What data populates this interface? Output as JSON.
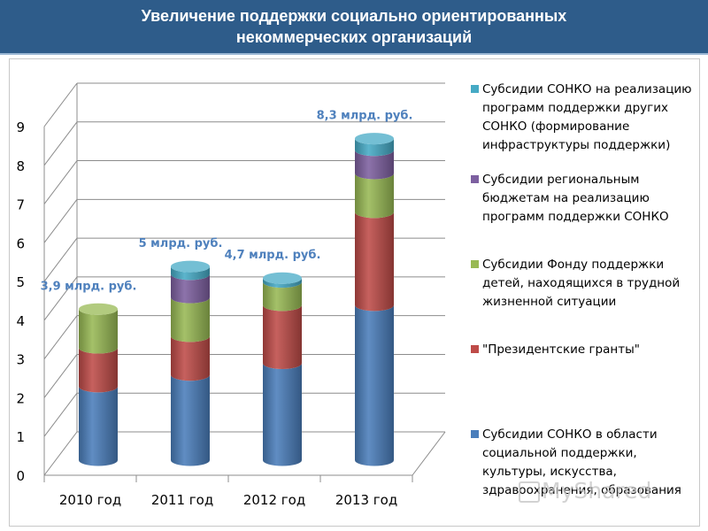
{
  "header": {
    "title_line1": "Увеличение поддержки социально ориентированных",
    "title_line2": "некоммерческих организаций"
  },
  "chart_data": {
    "type": "bar",
    "stacked": true,
    "style": "3d-cylinder",
    "categories": [
      "2010 год",
      "2011 год",
      "2012 год",
      "2013 год"
    ],
    "series": [
      {
        "name": "Субсидии СОНКО в области социальной поддержки, культуры, искусства, здравоохранения, образования",
        "color": "#4a7ebb",
        "values": [
          1.9,
          2.2,
          2.5,
          4.0
        ]
      },
      {
        "name": "\"Президентские гранты\"",
        "color": "#be4b48",
        "values": [
          1.0,
          1.0,
          1.5,
          2.4
        ]
      },
      {
        "name": "Субсидии Фонду поддержки детей, находящихся в трудной жизненной ситуации",
        "color": "#98b954",
        "values": [
          1.0,
          1.0,
          0.6,
          1.0
        ]
      },
      {
        "name": "Субсидии региональным бюджетам на реализацию программ поддержки СОНКО",
        "color": "#7d60a0",
        "values": [
          0,
          0.6,
          0,
          0.6
        ]
      },
      {
        "name": "Субсидии СОНКО на реализацию программ поддержки других СОНКО (формирование инфраструктуры поддержки)",
        "color": "#46aac5",
        "values": [
          0,
          0.2,
          0.1,
          0.3
        ]
      }
    ],
    "data_labels": [
      "3,9 млрд. руб.",
      "5 млрд. руб.",
      "4,7 млрд. руб.",
      "8,3 млрд. руб."
    ],
    "label_color": "#4f81bd",
    "ylim": [
      0,
      9
    ],
    "yticks": [
      "0",
      "1",
      "2",
      "3",
      "4",
      "5",
      "6",
      "7",
      "8",
      "9"
    ],
    "grid": true,
    "legend_position": "right"
  },
  "legend": {
    "items": [
      {
        "color": "#46aac5",
        "label": "Субсидии СОНКО на реализацию программ поддержки других СОНКО (формирование инфраструктуры поддержки)"
      },
      {
        "color": "#7d60a0",
        "label": "Субсидии региональным бюджетам на реализацию программ поддержки СОНКО"
      },
      {
        "color": "#98b954",
        "label": "Субсидии Фонду поддержки детей, находящихся в трудной жизненной ситуации"
      },
      {
        "color": "#be4b48",
        "label": "\"Президентские гранты\""
      },
      {
        "color": "#4a7ebb",
        "label": "Субсидии СОНКО в области социальной поддержки, культуры, искусства, здравоохранения, образования"
      }
    ]
  },
  "watermark": {
    "text": "MyShared"
  }
}
